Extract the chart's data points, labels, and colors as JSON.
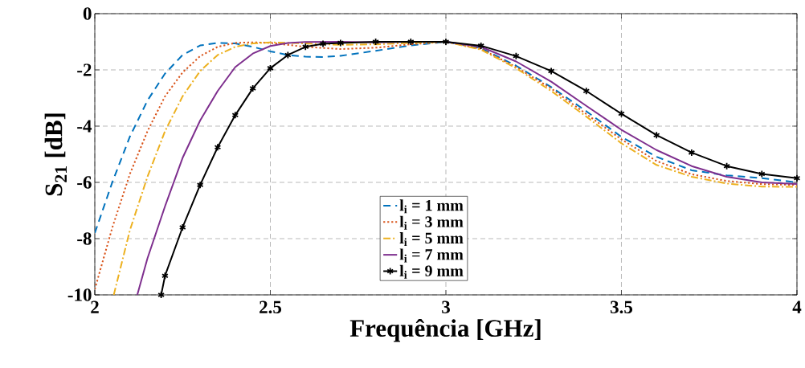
{
  "chart_data": {
    "type": "line",
    "xlabel": "Frequência [GHz]",
    "ylabel": "S$_{21}$ [dB]",
    "xlim": [
      2,
      4
    ],
    "ylim": [
      -10,
      0
    ],
    "xticks": [
      2,
      2.5,
      3,
      3.5,
      4
    ],
    "yticks": [
      -10,
      -8,
      -6,
      -4,
      -2,
      0
    ],
    "grid": true,
    "legend": "center",
    "series": [
      {
        "name": "l$_{i}$ = 1 mm",
        "color": "#0072bd",
        "line_style": "dashed",
        "marker": "none",
        "x": [
          2.0,
          2.05,
          2.1,
          2.15,
          2.2,
          2.25,
          2.3,
          2.35,
          2.4,
          2.45,
          2.5,
          2.55,
          2.6,
          2.65,
          2.7,
          2.8,
          2.9,
          3.0,
          3.1,
          3.2,
          3.3,
          3.4,
          3.5,
          3.6,
          3.7,
          3.8,
          3.9,
          4.0
        ],
        "values": [
          -7.8,
          -5.99,
          -4.37,
          -3.09,
          -2.13,
          -1.47,
          -1.13,
          -1.04,
          -1.06,
          -1.18,
          -1.34,
          -1.47,
          -1.53,
          -1.54,
          -1.5,
          -1.32,
          -1.13,
          -1.0,
          -1.23,
          -1.85,
          -2.61,
          -3.47,
          -4.38,
          -5.09,
          -5.57,
          -5.75,
          -5.85,
          -6.0
        ]
      },
      {
        "name": "l$_{i}$ = 3 mm",
        "color": "#d95319",
        "line_style": "dotted",
        "marker": "none",
        "x": [
          2.0,
          2.05,
          2.1,
          2.15,
          2.2,
          2.25,
          2.3,
          2.35,
          2.4,
          2.45,
          2.5,
          2.6,
          2.7,
          2.8,
          2.9,
          3.0,
          3.1,
          3.2,
          3.3,
          3.4,
          3.5,
          3.6,
          3.7,
          3.8,
          3.9,
          4.0
        ],
        "values": [
          -9.8,
          -7.6,
          -5.7,
          -4.18,
          -2.94,
          -2.09,
          -1.51,
          -1.18,
          -1.04,
          -1.02,
          -1.04,
          -1.18,
          -1.26,
          -1.21,
          -1.09,
          -1.0,
          -1.25,
          -1.9,
          -2.66,
          -3.57,
          -4.47,
          -5.24,
          -5.71,
          -5.95,
          -6.06,
          -6.09
        ]
      },
      {
        "name": "l$_{i}$ = 5 mm",
        "color": "#edb120",
        "line_style": "dashdot",
        "marker": "none",
        "x": [
          2.054,
          2.1,
          2.15,
          2.2,
          2.25,
          2.3,
          2.35,
          2.4,
          2.45,
          2.5,
          2.6,
          2.7,
          2.8,
          2.9,
          3.0,
          3.1,
          3.2,
          3.3,
          3.4,
          3.5,
          3.6,
          3.7,
          3.8,
          3.9,
          4.0
        ],
        "values": [
          -10,
          -7.7,
          -5.8,
          -4.18,
          -2.94,
          -2.04,
          -1.47,
          -1.18,
          -1.06,
          -1.02,
          -1.06,
          -1.11,
          -1.09,
          -1.04,
          -1.0,
          -1.28,
          -1.94,
          -2.75,
          -3.66,
          -4.61,
          -5.38,
          -5.8,
          -6.04,
          -6.15,
          -6.16
        ]
      },
      {
        "name": "l$_{i}$ = 7 mm",
        "color": "#7e2f8e",
        "line_style": "solid",
        "marker": "none",
        "x": [
          2.121,
          2.15,
          2.2,
          2.25,
          2.3,
          2.35,
          2.4,
          2.45,
          2.5,
          2.55,
          2.6,
          2.7,
          2.8,
          2.9,
          3.0,
          3.1,
          3.2,
          3.3,
          3.4,
          3.5,
          3.6,
          3.7,
          3.8,
          3.9,
          4.0
        ],
        "values": [
          -10,
          -8.7,
          -6.85,
          -5.13,
          -3.8,
          -2.75,
          -1.9,
          -1.42,
          -1.15,
          -1.04,
          -1.01,
          -1.0,
          -1.02,
          -1.0,
          -1.0,
          -1.18,
          -1.7,
          -2.42,
          -3.28,
          -4.13,
          -4.85,
          -5.42,
          -5.8,
          -6.0,
          -6.06
        ]
      },
      {
        "name": "l$_{i}$ = 9 mm",
        "color": "#000000",
        "line_style": "solid",
        "marker": "cross",
        "x": [
          2.189,
          2.2,
          2.25,
          2.3,
          2.35,
          2.4,
          2.45,
          2.5,
          2.55,
          2.6,
          2.65,
          2.7,
          2.8,
          2.9,
          3.0,
          3.1,
          3.2,
          3.3,
          3.4,
          3.5,
          3.6,
          3.7,
          3.8,
          3.9,
          4.0
        ],
        "values": [
          -10,
          -9.32,
          -7.6,
          -6.09,
          -4.75,
          -3.61,
          -2.66,
          -1.94,
          -1.47,
          -1.18,
          -1.07,
          -1.04,
          -1.0,
          -1.0,
          -1.0,
          -1.14,
          -1.51,
          -2.04,
          -2.75,
          -3.56,
          -4.32,
          -4.94,
          -5.42,
          -5.7,
          -5.85
        ]
      }
    ]
  }
}
